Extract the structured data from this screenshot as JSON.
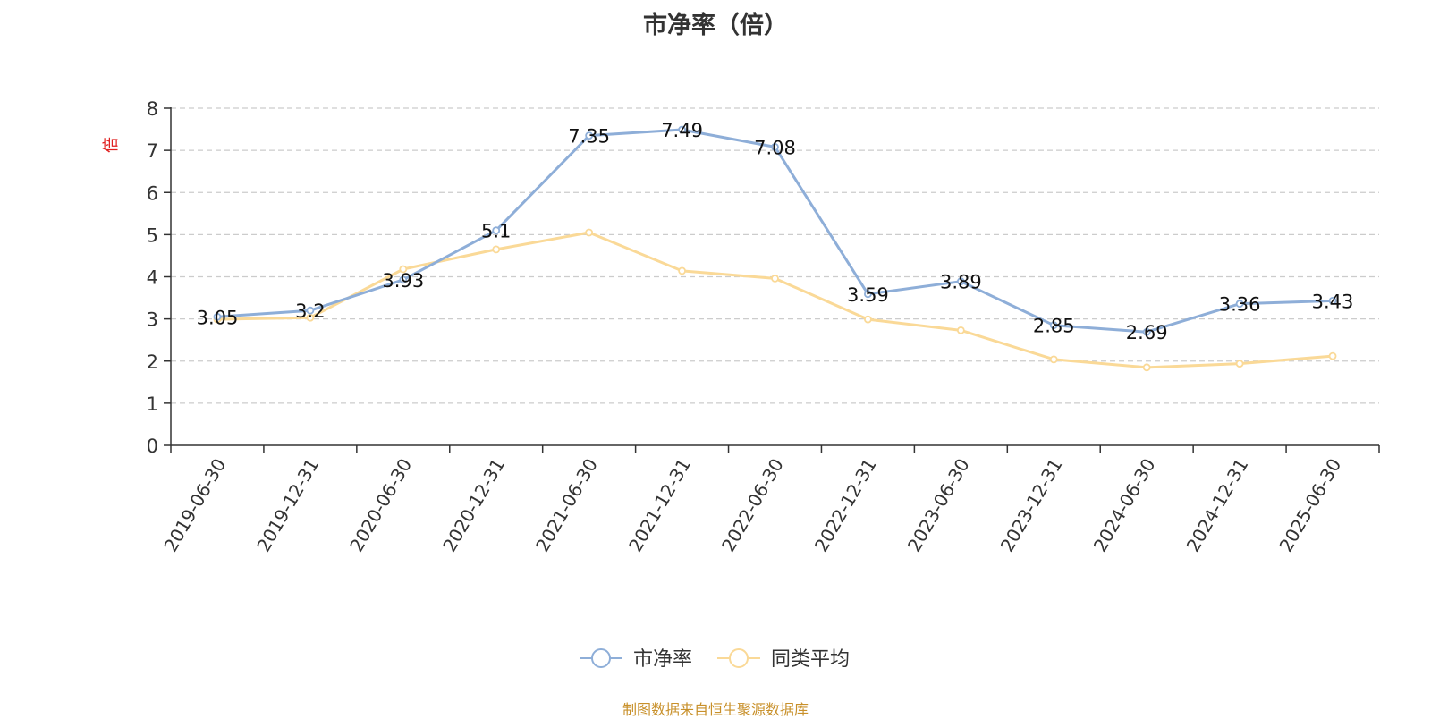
{
  "chart_data": {
    "type": "line",
    "title": "市净率（倍）",
    "ylabel": "倍",
    "xlabel": "",
    "ylim": [
      0,
      8
    ],
    "yticks": [
      0,
      1,
      2,
      3,
      4,
      5,
      6,
      7,
      8
    ],
    "grid": true,
    "legend_position": "bottom-center",
    "categories": [
      "2019-06-30",
      "2019-12-31",
      "2020-06-30",
      "2020-12-31",
      "2021-06-30",
      "2021-12-31",
      "2022-06-30",
      "2022-12-31",
      "2023-06-30",
      "2023-12-31",
      "2024-06-30",
      "2024-12-31",
      "2025-06-30"
    ],
    "series": [
      {
        "name": "市净率",
        "color": "#8eaed8",
        "values": [
          3.05,
          3.2,
          3.93,
          5.1,
          7.35,
          7.49,
          7.08,
          3.59,
          3.89,
          2.85,
          2.69,
          3.36,
          3.43
        ],
        "labels": [
          "3.05",
          "3.2",
          "3.93",
          "5.1",
          "7.35",
          "7.49",
          "7.08",
          "3.59",
          "3.89",
          "2.85",
          "2.69",
          "3.36",
          "3.43"
        ]
      },
      {
        "name": "同类平均",
        "color": "#fad997",
        "values": [
          2.99,
          3.03,
          4.18,
          4.65,
          5.05,
          4.14,
          3.96,
          2.99,
          2.73,
          2.04,
          1.85,
          1.94,
          2.12
        ]
      }
    ]
  },
  "colors": {
    "axis": "#333333",
    "grid": "#cccccc",
    "ylabel": "#e02020"
  },
  "footer": {
    "source": "制图数据来自恒生聚源数据库"
  }
}
